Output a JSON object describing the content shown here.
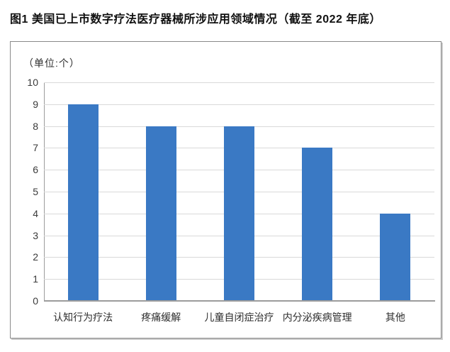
{
  "figure": {
    "title": "图1  美国已上市数字疗法医疗器械所涉应用领域情况（截至 2022 年底）",
    "unit_label": "（单位:个）"
  },
  "chart_data": {
    "type": "bar",
    "title": "图1  美国已上市数字疗法医疗器械所涉应用领域情况（截至 2022 年底）",
    "unit_label": "（单位:个）",
    "categories": [
      "认知行为疗法",
      "疼痛缓解",
      "儿童自闭症治疗",
      "内分泌疾病管理",
      "其他"
    ],
    "values": [
      9,
      8,
      8,
      7,
      4
    ],
    "xlabel": "",
    "ylabel": "",
    "ylim": [
      0,
      10
    ],
    "ytick_step": 1,
    "ytick_labels": [
      "0",
      "1",
      "2",
      "3",
      "4",
      "5",
      "6",
      "7",
      "8",
      "9",
      "10"
    ],
    "grid": true,
    "legend": "none",
    "colors": {
      "bar": "#3A79C4",
      "gridline": "#D9D9D9",
      "axis": "#9C9C9C",
      "label_text": "#2E2E2E",
      "title_text": "#111111",
      "frame_border": "#8A8A8A"
    }
  }
}
